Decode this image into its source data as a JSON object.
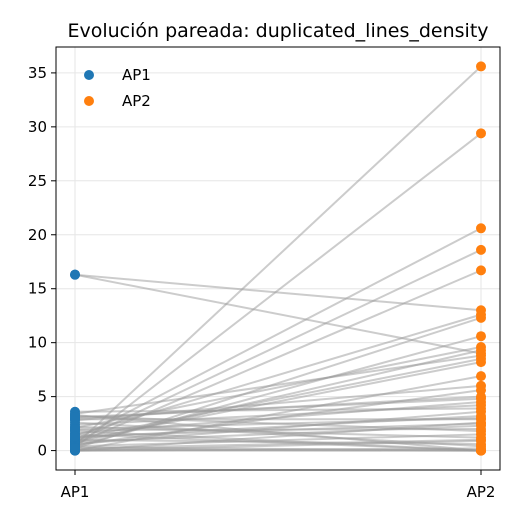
{
  "chart_data": {
    "type": "line",
    "subtype": "paired-dot-plot",
    "title": "Evolución pareada: duplicated_lines_density",
    "xlabel": "",
    "ylabel": "",
    "categories": [
      "AP1",
      "AP2"
    ],
    "ylim": [
      -1.8,
      37.4
    ],
    "yticks": [
      0,
      5,
      10,
      15,
      20,
      25,
      30,
      35
    ],
    "grid": true,
    "legend": {
      "placement": "top-left",
      "entries": [
        "AP1",
        "AP2"
      ]
    },
    "series": [
      {
        "name": "AP1",
        "color": "#1f77b4"
      },
      {
        "name": "AP2",
        "color": "#ff7f0e"
      }
    ],
    "line_color": "#999999",
    "pairs": [
      [
        0.5,
        35.6
      ],
      [
        0.3,
        29.4
      ],
      [
        1.0,
        20.6
      ],
      [
        0.8,
        18.6
      ],
      [
        0.6,
        16.7
      ],
      [
        16.3,
        13.0
      ],
      [
        16.3,
        9.0
      ],
      [
        0.2,
        12.3
      ],
      [
        1.4,
        12.6
      ],
      [
        0.4,
        10.6
      ],
      [
        2.1,
        9.6
      ],
      [
        0.7,
        9.3
      ],
      [
        3.4,
        8.8
      ],
      [
        1.1,
        8.5
      ],
      [
        0.9,
        8.2
      ],
      [
        0.0,
        6.9
      ],
      [
        2.8,
        6.0
      ],
      [
        0.5,
        5.6
      ],
      [
        3.0,
        5.0
      ],
      [
        1.6,
        4.5
      ],
      [
        2.4,
        4.2
      ],
      [
        3.6,
        3.9
      ],
      [
        0.6,
        3.6
      ],
      [
        1.2,
        3.2
      ],
      [
        2.9,
        2.9
      ],
      [
        0.0,
        2.6
      ],
      [
        0.8,
        2.3
      ],
      [
        1.9,
        2.0
      ],
      [
        3.2,
        1.8
      ],
      [
        0.4,
        1.5
      ],
      [
        2.2,
        1.2
      ],
      [
        0.0,
        0.9
      ],
      [
        1.0,
        0.6
      ],
      [
        2.6,
        0.4
      ],
      [
        3.3,
        0.0
      ],
      [
        0.1,
        0.0
      ],
      [
        1.5,
        0.0
      ],
      [
        0.0,
        0.0
      ],
      [
        0.3,
        0.0
      ],
      [
        1.8,
        0.0
      ],
      [
        0.0,
        0.2
      ],
      [
        2.0,
        3.0
      ],
      [
        3.1,
        4.8
      ],
      [
        0.2,
        1.0
      ],
      [
        1.3,
        2.5
      ]
    ]
  }
}
